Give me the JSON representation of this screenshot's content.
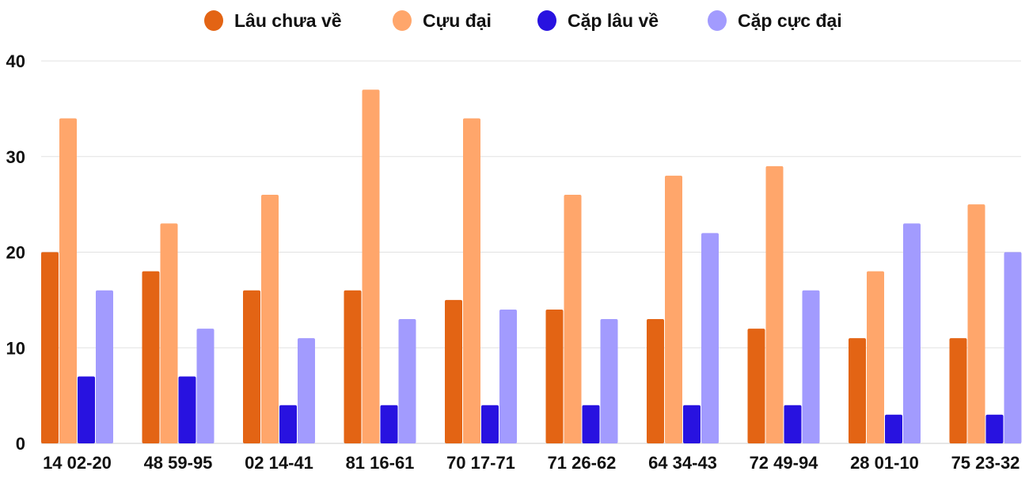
{
  "chart_data": {
    "type": "bar",
    "title": "",
    "xlabel": "",
    "ylabel": "",
    "ylim": [
      0,
      40
    ],
    "yticks": [
      0,
      10,
      20,
      30,
      40
    ],
    "grid": true,
    "legend_position": "top",
    "categories": [
      "14 02-20",
      "48 59-95",
      "02 14-41",
      "81 16-61",
      "70 17-71",
      "71 26-62",
      "64 34-43",
      "72 49-94",
      "28 01-10",
      "75 23-32"
    ],
    "series": [
      {
        "name": "Lâu chưa về",
        "color": "#e36414",
        "values": [
          20,
          18,
          16,
          16,
          15,
          14,
          13,
          12,
          11,
          11
        ]
      },
      {
        "name": "Cựu đại",
        "color": "#ffa66b",
        "values": [
          34,
          23,
          26,
          37,
          34,
          26,
          28,
          29,
          18,
          25
        ]
      },
      {
        "name": "Cặp lâu về",
        "color": "#2812e0",
        "values": [
          7,
          7,
          4,
          4,
          4,
          4,
          4,
          4,
          3,
          3
        ]
      },
      {
        "name": "Cặp cực đại",
        "color": "#a29bfe",
        "values": [
          16,
          12,
          11,
          13,
          14,
          13,
          22,
          16,
          23,
          20
        ]
      }
    ]
  }
}
